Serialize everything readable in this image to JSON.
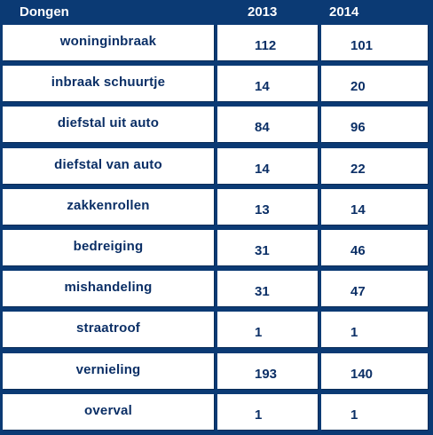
{
  "table": {
    "title": "Dongen",
    "year_1": "2013",
    "year_2": "2014",
    "rows": [
      {
        "label": "woninginbraak",
        "v2013": "112",
        "v2014": "101"
      },
      {
        "label": "inbraak schuurtje",
        "v2013": "14",
        "v2014": "20"
      },
      {
        "label": "diefstal uit auto",
        "v2013": "84",
        "v2014": "96"
      },
      {
        "label": "diefstal van auto",
        "v2013": "14",
        "v2014": "22"
      },
      {
        "label": "zakkenrollen",
        "v2013": "13",
        "v2014": "14"
      },
      {
        "label": "bedreiging",
        "v2013": "31",
        "v2014": "46"
      },
      {
        "label": "mishandeling",
        "v2013": "31",
        "v2014": "47"
      },
      {
        "label": "straatroof",
        "v2013": "1",
        "v2014": "1"
      },
      {
        "label": "vernieling",
        "v2013": "193",
        "v2014": "140"
      },
      {
        "label": "overval",
        "v2013": "1",
        "v2014": "1"
      }
    ]
  },
  "colors": {
    "background": "#0b3a74",
    "cell": "#ffffff",
    "cell_text": "#0b2f66",
    "header_text": "#ffffff"
  }
}
